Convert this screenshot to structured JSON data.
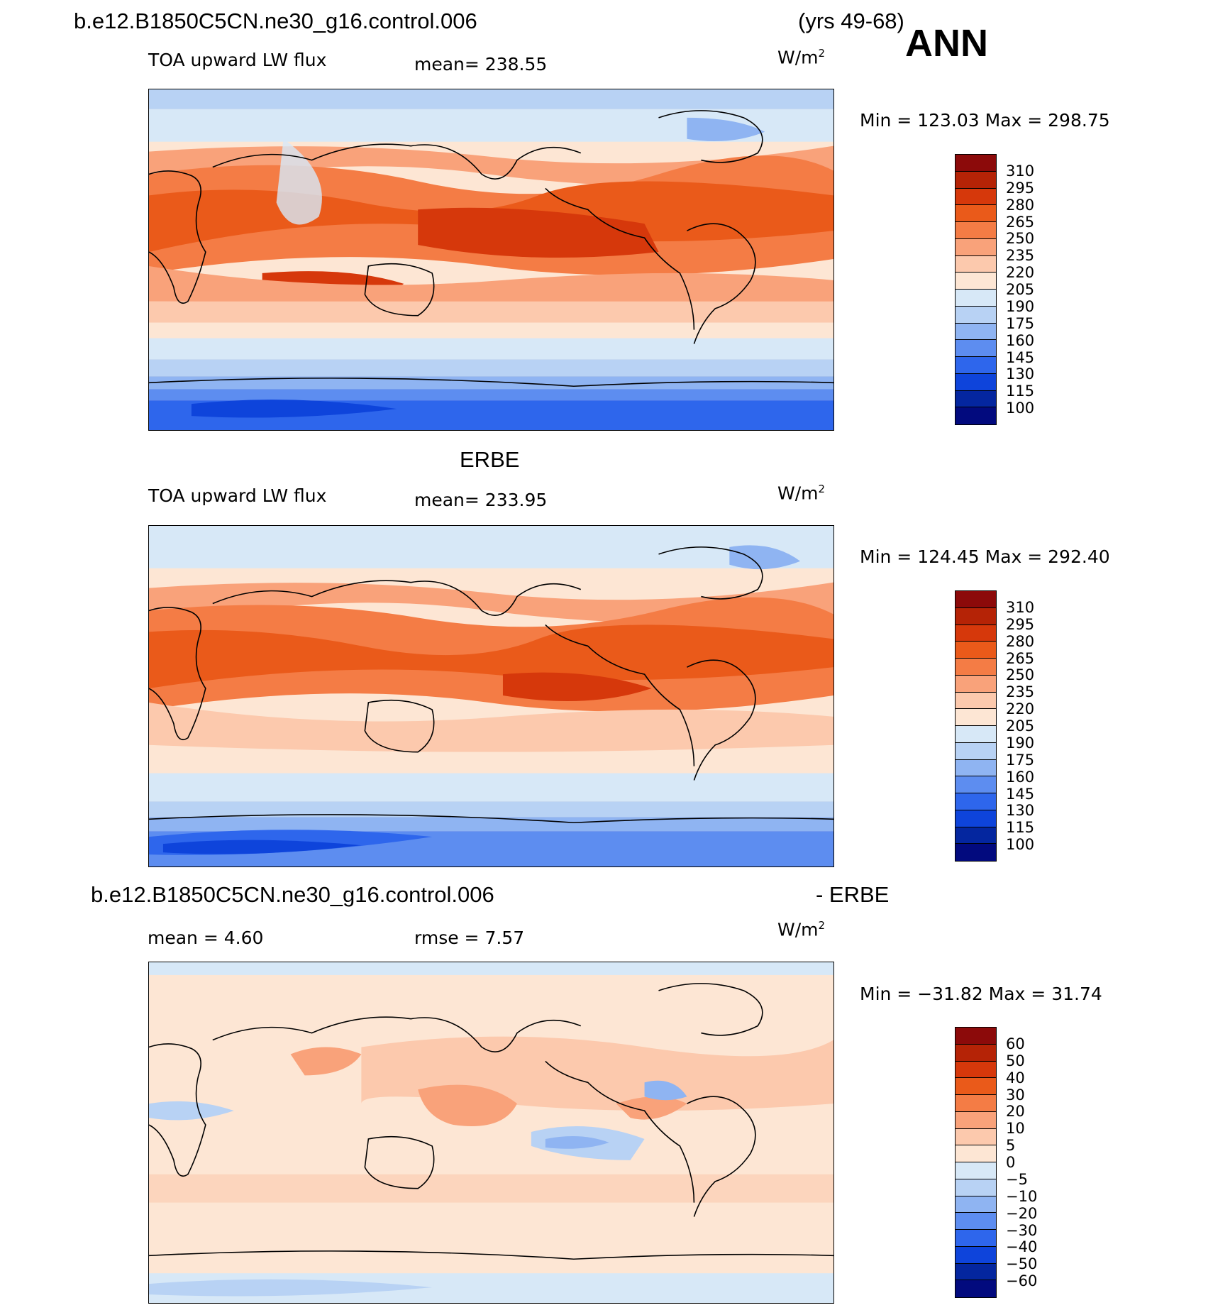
{
  "figure": {
    "case_title": "b.e12.B1850C5CN.ne30_g16.control.006",
    "years": "(yrs 49-68)",
    "season": "ANN"
  },
  "palette_abs": [
    "#8c0a0a",
    "#b52306",
    "#d6380b",
    "#ea5a1a",
    "#f47c45",
    "#f9a27a",
    "#fcc9ad",
    "#fde6d4",
    "#d7e8f7",
    "#b8d2f4",
    "#8fb4f2",
    "#5d8df0",
    "#2e66ec",
    "#0e44db",
    "#04269f",
    "#020a7e"
  ],
  "palette_diff": [
    "#8c0a0a",
    "#b52306",
    "#d6380b",
    "#ea5a1a",
    "#f47c45",
    "#f9a27a",
    "#fcc9ad",
    "#fde6d4",
    "#d7e8f7",
    "#b8d2f4",
    "#8fb4f2",
    "#5d8df0",
    "#2e66ec",
    "#0e44db",
    "#04269f",
    "#020a7e"
  ],
  "panels": [
    {
      "id": "model",
      "header": "",
      "variable": "TOA upward LW flux",
      "stat1": "mean=  238.55",
      "stat2": "",
      "units": "W/m",
      "units_sup": "2",
      "minmax": "Min  =  123.03  Max  =  298.75",
      "colorbar_labels": [
        "310",
        "295",
        "280",
        "265",
        "250",
        "235",
        "220",
        "205",
        "190",
        "175",
        "160",
        "145",
        "130",
        "115",
        "100"
      ]
    },
    {
      "id": "obs",
      "header": "ERBE",
      "variable": "TOA upward LW flux",
      "stat1": "mean=  233.95",
      "stat2": "",
      "units": "W/m",
      "units_sup": "2",
      "minmax": "Min  =  124.45  Max  =  292.40",
      "colorbar_labels": [
        "310",
        "295",
        "280",
        "265",
        "250",
        "235",
        "220",
        "205",
        "190",
        "175",
        "160",
        "145",
        "130",
        "115",
        "100"
      ]
    },
    {
      "id": "diff",
      "header": "b.e12.B1850C5CN.ne30_g16.control.006",
      "header_right": "- ERBE",
      "variable": "",
      "stat1": "mean  =     4.60",
      "stat2": "rmse  =     7.57",
      "units": "W/m",
      "units_sup": "2",
      "minmax": "Min  =  −31.82  Max  =   31.74",
      "colorbar_labels": [
        "60",
        "50",
        "40",
        "30",
        "20",
        "10",
        "5",
        "0",
        "−5",
        "−10",
        "−20",
        "−30",
        "−40",
        "−50",
        "−60"
      ]
    }
  ]
}
